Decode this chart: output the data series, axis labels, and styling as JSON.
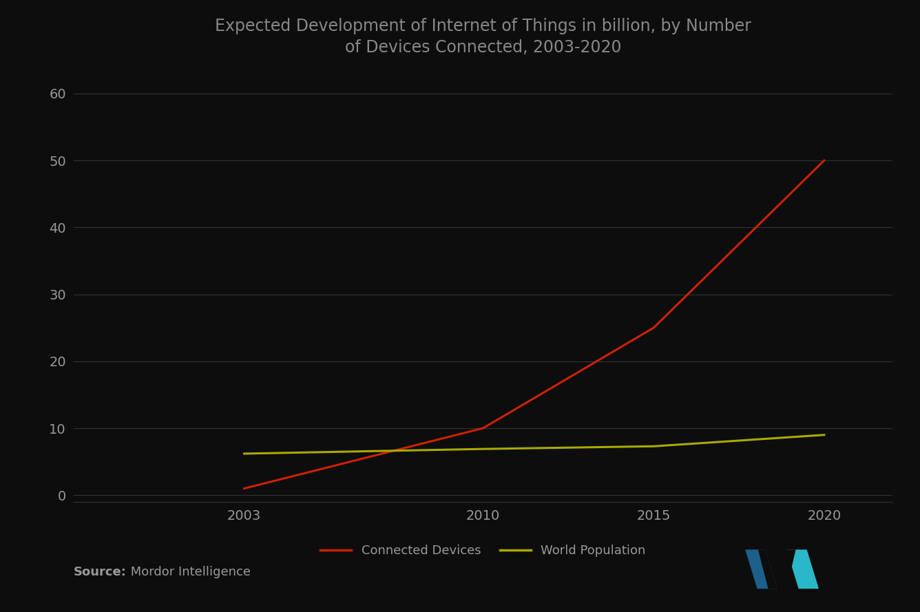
{
  "title": "Expected Development of Internet of Things in billion, by Number\nof Devices Connected, 2003-2020",
  "title_fontsize": 17,
  "background_color": "#0d0d0d",
  "plot_bg_color": "#0d0d0d",
  "text_color": "#999999",
  "title_color": "#888888",
  "grid_color": "#333333",
  "connected_devices": {
    "x": [
      2003,
      2010,
      2015,
      2020
    ],
    "y": [
      1,
      10,
      25,
      50
    ],
    "color": "#cc2200",
    "label": "Connected Devices",
    "linewidth": 2.2
  },
  "world_population": {
    "x": [
      2003,
      2010,
      2015,
      2020
    ],
    "y": [
      6.2,
      6.9,
      7.3,
      9.0
    ],
    "color": "#aaaa00",
    "label": "World Population",
    "linewidth": 2.2
  },
  "yticks": [
    0,
    10,
    20,
    30,
    40,
    50,
    60
  ],
  "xticks": [
    2003,
    2010,
    2015,
    2020
  ],
  "xlim": [
    1998,
    2022
  ],
  "ylim": [
    -1,
    63
  ],
  "source_bold": "Source:",
  "source_text": " Mordor Intelligence",
  "source_fontsize": 13,
  "legend_fontsize": 13,
  "tick_fontsize": 14,
  "logo_dark": "#1c5f8a",
  "logo_light": "#2ab8c8"
}
